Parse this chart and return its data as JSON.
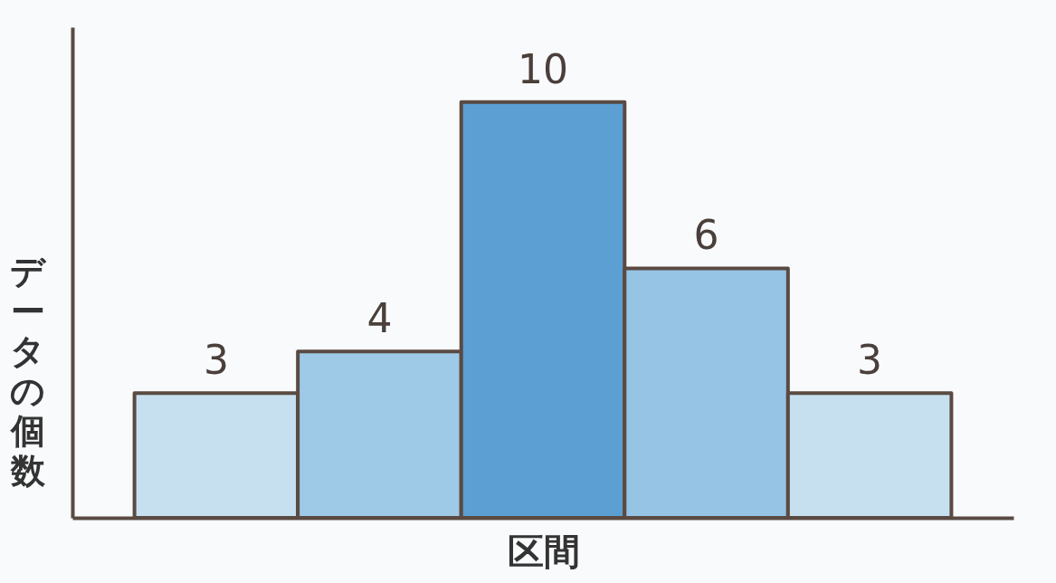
{
  "chart_data": {
    "type": "bar",
    "xlabel": "区間",
    "ylabel": "データの個数",
    "categories": [
      null,
      null,
      null,
      null,
      null
    ],
    "values": [
      3,
      4,
      10,
      6,
      3
    ],
    "colors": [
      "#c6e0f0",
      "#9fcae7",
      "#5b9fd3",
      "#95c4e5",
      "#c6e0f0"
    ],
    "relative": false,
    "data_labels": true,
    "tick_labels": false,
    "grid": false,
    "legend": false
  }
}
